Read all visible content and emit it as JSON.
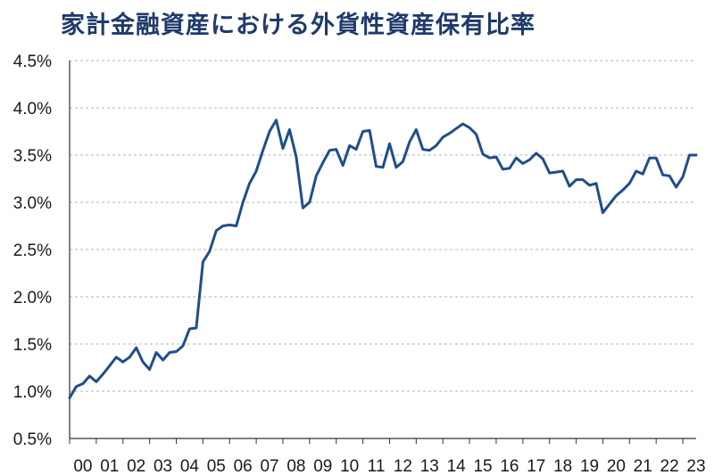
{
  "title": "家計金融資産における外貨性資産保有比率",
  "chart_data": {
    "type": "line",
    "title": "家計金融資産における外貨性資産保有比率",
    "xlabel": "",
    "ylabel": "",
    "ylim": [
      0.5,
      4.5
    ],
    "y_ticks": [
      "0.5%",
      "1.0%",
      "1.5%",
      "2.0%",
      "2.5%",
      "3.0%",
      "3.5%",
      "4.0%",
      "4.5%"
    ],
    "x_ticks": [
      "00",
      "01",
      "02",
      "03",
      "04",
      "05",
      "06",
      "07",
      "08",
      "09",
      "10",
      "11",
      "12",
      "13",
      "14",
      "15",
      "16",
      "17",
      "18",
      "19",
      "20",
      "21",
      "22",
      "23"
    ],
    "grid": true,
    "line_color": "#1f4e8c",
    "series": [
      {
        "x": [
          0.0,
          0.25,
          0.5,
          0.75,
          1.0,
          1.25,
          1.5,
          1.75,
          2.0,
          2.25,
          2.5,
          2.75,
          3.0,
          3.25,
          3.5,
          3.75,
          4.0,
          4.25,
          4.5,
          4.75,
          5.0,
          5.25,
          5.5,
          5.75,
          6.0,
          6.25,
          6.5,
          6.75,
          7.0,
          7.25,
          7.5,
          7.75,
          8.0,
          8.25,
          8.5,
          8.75,
          9.0,
          9.25,
          9.5,
          9.75,
          10.0,
          10.25,
          10.5,
          10.75,
          11.0,
          11.25,
          11.5,
          11.75,
          12.0,
          12.25,
          12.5,
          12.75,
          13.0,
          13.25,
          13.5,
          13.75,
          14.0,
          14.25,
          14.5,
          14.75,
          15.0,
          15.25,
          15.5,
          15.75,
          16.0,
          16.25,
          16.5,
          16.75,
          17.0,
          17.25,
          17.5,
          17.75,
          18.0,
          18.25,
          18.5,
          18.75,
          19.0,
          19.25,
          19.5,
          19.75,
          20.0,
          20.25,
          20.5,
          20.75,
          21.0,
          21.25,
          21.5,
          21.75,
          22.0,
          22.25,
          22.5,
          22.75,
          23.0,
          23.25,
          23.5
        ],
        "values": [
          0.93,
          1.05,
          1.08,
          1.16,
          1.1,
          1.18,
          1.27,
          1.36,
          1.31,
          1.36,
          1.46,
          1.31,
          1.23,
          1.41,
          1.33,
          1.41,
          1.42,
          1.48,
          1.66,
          1.67,
          2.37,
          2.48,
          2.7,
          2.75,
          2.76,
          2.75,
          3.0,
          3.2,
          3.33,
          3.55,
          3.75,
          3.87,
          3.57,
          3.77,
          3.48,
          2.94,
          3.0,
          3.28,
          3.42,
          3.55,
          3.56,
          3.39,
          3.6,
          3.56,
          3.75,
          3.76,
          3.38,
          3.37,
          3.62,
          3.37,
          3.43,
          3.64,
          3.77,
          3.56,
          3.55,
          3.6,
          3.69,
          3.73,
          3.78,
          3.83,
          3.79,
          3.72,
          3.51,
          3.47,
          3.48,
          3.35,
          3.36,
          3.47,
          3.41,
          3.45,
          3.52,
          3.46,
          3.31,
          3.32,
          3.33,
          3.17,
          3.24,
          3.24,
          3.18,
          3.2,
          2.89,
          2.98,
          3.07,
          3.13,
          3.2,
          3.33,
          3.3,
          3.47,
          3.47,
          3.29,
          3.28,
          3.16,
          3.27,
          3.5,
          3.5
        ]
      }
    ]
  }
}
